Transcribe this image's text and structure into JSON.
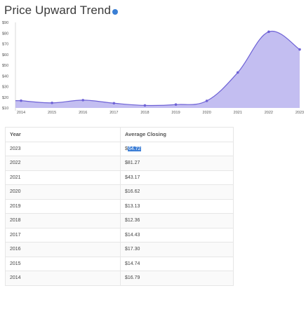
{
  "header": {
    "title": "Price Upward Trend"
  },
  "chart_data": {
    "type": "area",
    "x": [
      "2014",
      "2015",
      "2016",
      "2017",
      "2018",
      "2019",
      "2020",
      "2021",
      "2022",
      "2023"
    ],
    "values": [
      16.79,
      14.74,
      17.3,
      14.43,
      12.36,
      13.13,
      16.62,
      43.17,
      81.27,
      64.72
    ],
    "y_ticks": [
      "$10",
      "$20",
      "$30",
      "$40",
      "$50",
      "$60",
      "$70",
      "$80",
      "$90"
    ],
    "ylim": [
      10,
      90
    ],
    "grid": false,
    "colors": {
      "fill": "#b8b3ef",
      "line": "#6e62d6",
      "point": "#6e62d6"
    }
  },
  "table": {
    "headers": [
      "Year",
      "Average Closing"
    ],
    "rows": [
      {
        "year": "2023",
        "close": "$64.72",
        "highlight_prefix": "$",
        "highlight_sel": "64.72"
      },
      {
        "year": "2022",
        "close": "$81.27"
      },
      {
        "year": "2021",
        "close": "$43.17"
      },
      {
        "year": "2020",
        "close": "$16.62"
      },
      {
        "year": "2019",
        "close": "$13.13"
      },
      {
        "year": "2018",
        "close": "$12.36"
      },
      {
        "year": "2017",
        "close": "$14.43"
      },
      {
        "year": "2016",
        "close": "$17.30"
      },
      {
        "year": "2015",
        "close": "$14.74"
      },
      {
        "year": "2014",
        "close": "$16.79"
      }
    ]
  }
}
